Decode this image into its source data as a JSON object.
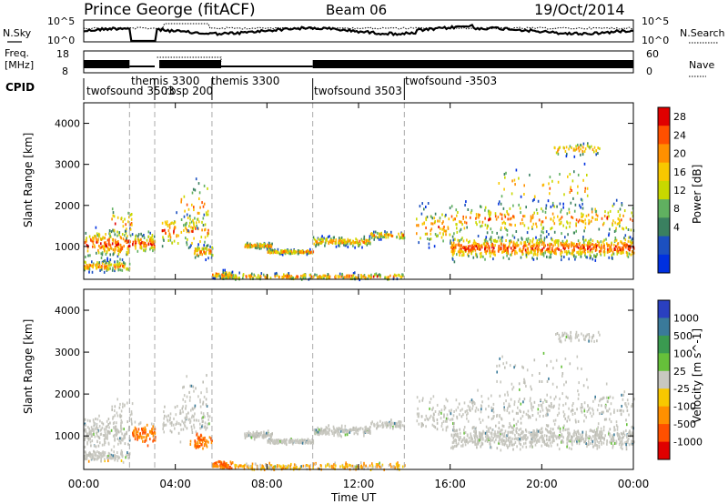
{
  "header": {
    "title": "Prince George (fitACF)",
    "beam": "Beam 06",
    "date": "19/Oct/2014"
  },
  "noise_panel": {
    "left_label": "N.Sky",
    "right_label": "N.Search",
    "left_ticks": [
      "10^5",
      "10^0"
    ],
    "right_ticks": [
      "10^5",
      "10^0"
    ]
  },
  "freq_panel": {
    "left_label_line1": "Freq.",
    "left_label_line2": "[MHz]",
    "left_ticks": [
      "18",
      "8"
    ],
    "right_label": "Nave",
    "right_ticks": [
      "60",
      "0"
    ]
  },
  "cpid": {
    "label": "CPID",
    "modes": [
      "twofsound 3503",
      "themis 3300",
      "rbsp 200",
      "themis 3300",
      "twofsound 3503",
      "twofsound -3503"
    ]
  },
  "x_axis": {
    "label": "Time UT",
    "ticks": [
      "00:00",
      "04:00",
      "08:00",
      "12:00",
      "16:00",
      "20:00",
      "00:00"
    ]
  },
  "chart_data": [
    {
      "type": "heatmap",
      "name": "power",
      "ylabel": "Slant Range [km]",
      "ylim": [
        200,
        4500
      ],
      "yticks": [
        "1000",
        "2000",
        "3000",
        "4000"
      ],
      "colorbar_label": "Power [dB]",
      "colorbar_ticks": [
        "28",
        "24",
        "20",
        "16",
        "12",
        "8",
        "4"
      ],
      "colorbar_colors": [
        "#e00000",
        "#ff5000",
        "#ff9000",
        "#f8c800",
        "#c8d800",
        "#60b060",
        "#3a8060",
        "#1c50c0",
        "#0030e0"
      ]
    },
    {
      "type": "heatmap",
      "name": "velocity",
      "ylabel": "Slant Range [km]",
      "ylim": [
        200,
        4500
      ],
      "yticks": [
        "1000",
        "2000",
        "3000",
        "4000"
      ],
      "colorbar_label": "Velocity [m s^-1]",
      "colorbar_ticks": [
        "1000",
        "500",
        "100",
        "25",
        "-25",
        "-100",
        "-500",
        "-1000"
      ],
      "colorbar_colors": [
        "#2a40c0",
        "#3a7a9a",
        "#3a9a50",
        "#66c03a",
        "#c8c8c0",
        "#f8c800",
        "#ff9000",
        "#ff5000",
        "#e00000"
      ]
    }
  ]
}
